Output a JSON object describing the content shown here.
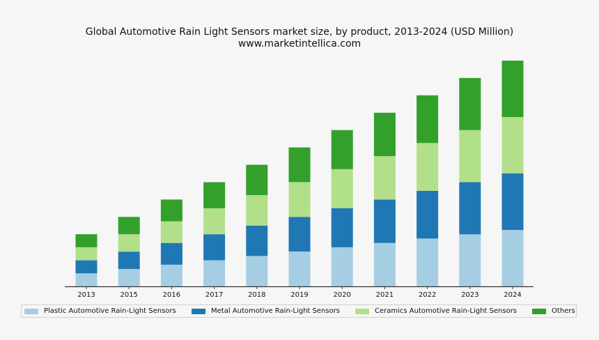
{
  "chart_data": {
    "type": "bar",
    "stacked": true,
    "title": "Global Automotive Rain Light Sensors market size, by product, 2013-2024 (USD Million)",
    "subtitle": "www.marketintellica.com",
    "xlabel": "",
    "ylabel": "",
    "y_axis_visible": false,
    "ylim": [
      0,
      5.2
    ],
    "grid": false,
    "legend_position": "bottom",
    "categories": [
      "2013",
      "2015",
      "2016",
      "2017",
      "2018",
      "2019",
      "2020",
      "2021",
      "2022",
      "2023",
      "2024"
    ],
    "series": [
      {
        "name": "Plastic Automotive Rain-Light Sensors",
        "color": "#a6cee3",
        "values": [
          0.3,
          0.4,
          0.5,
          0.6,
          0.7,
          0.8,
          0.9,
          1.0,
          1.1,
          1.2,
          1.3
        ]
      },
      {
        "name": "Metal Automotive Rain-Light Sensors",
        "color": "#1f78b4",
        "values": [
          0.3,
          0.4,
          0.5,
          0.6,
          0.7,
          0.8,
          0.9,
          1.0,
          1.1,
          1.2,
          1.3
        ]
      },
      {
        "name": "Ceramics Automotive Rain-Light Sensors",
        "color": "#b2df8a",
        "values": [
          0.3,
          0.4,
          0.5,
          0.6,
          0.7,
          0.8,
          0.9,
          1.0,
          1.1,
          1.2,
          1.3
        ]
      },
      {
        "name": "Others",
        "color": "#33a02c",
        "values": [
          0.3,
          0.4,
          0.5,
          0.6,
          0.7,
          0.8,
          0.9,
          1.0,
          1.1,
          1.2,
          1.3
        ]
      }
    ]
  }
}
